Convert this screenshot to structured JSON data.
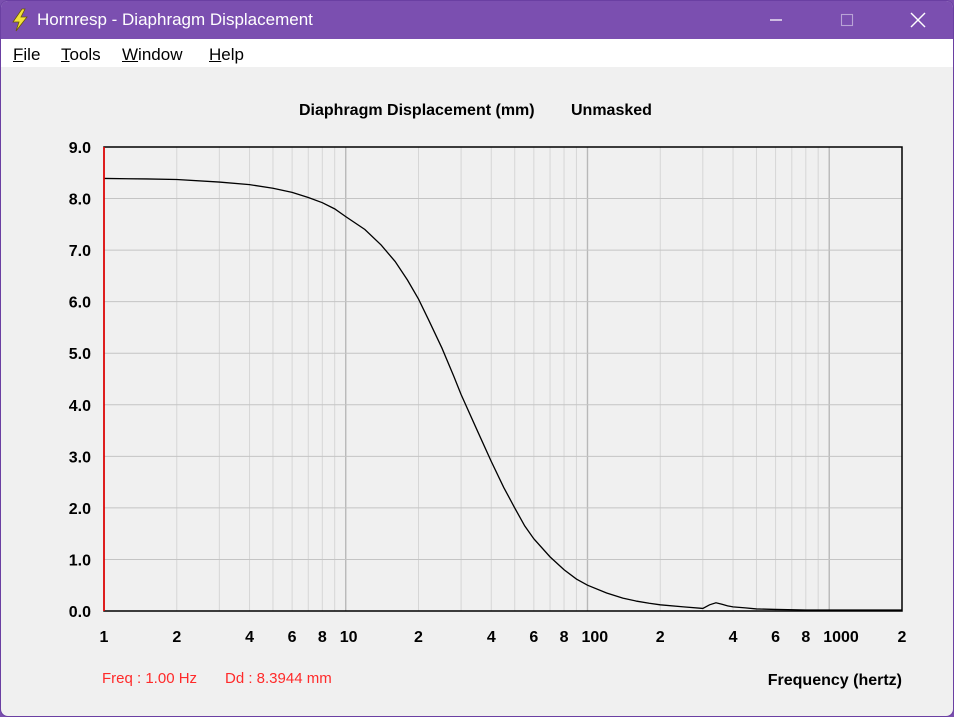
{
  "window": {
    "title": "Hornresp - Diaphragm Displacement",
    "accent_color": "#7b4fb0",
    "icons": [
      "lightning-icon",
      "minimize-icon",
      "maximize-icon",
      "close-icon"
    ]
  },
  "menu": {
    "file": {
      "mnemonic": "F",
      "rest": "ile"
    },
    "tools": {
      "mnemonic": "T",
      "rest": "ools"
    },
    "window": {
      "mnemonic": "W",
      "rest": "indow"
    },
    "help": {
      "mnemonic": "H",
      "rest": "elp"
    }
  },
  "status": {
    "freq": "Freq : 1.00 Hz",
    "dd": "Dd : 8.3944 mm"
  },
  "chart_data": {
    "type": "line",
    "title": "Diaphragm Displacement (mm)",
    "subtitle": "Unmasked",
    "xlabel": "Frequency (hertz)",
    "ylabel": "",
    "x_scale": "log",
    "xlim": [
      1,
      2000
    ],
    "ylim": [
      0,
      9
    ],
    "grid": true,
    "y_ticks": [
      "0.0",
      "1.0",
      "2.0",
      "3.0",
      "4.0",
      "5.0",
      "6.0",
      "7.0",
      "8.0",
      "9.0"
    ],
    "x_ticks": [
      {
        "value": 1,
        "label": "1"
      },
      {
        "value": 2,
        "label": "2"
      },
      {
        "value": 4,
        "label": "4"
      },
      {
        "value": 6,
        "label": "6"
      },
      {
        "value": 8,
        "label": "8"
      },
      {
        "value": 10,
        "label": "10"
      },
      {
        "value": 20,
        "label": "2"
      },
      {
        "value": 40,
        "label": "4"
      },
      {
        "value": 60,
        "label": "6"
      },
      {
        "value": 80,
        "label": "8"
      },
      {
        "value": 100,
        "label": "100"
      },
      {
        "value": 200,
        "label": "2"
      },
      {
        "value": 400,
        "label": "4"
      },
      {
        "value": 600,
        "label": "6"
      },
      {
        "value": 800,
        "label": "8"
      },
      {
        "value": 1000,
        "label": "1000"
      },
      {
        "value": 2000,
        "label": "2"
      }
    ],
    "cursor_x": 1,
    "line_color": "#000000",
    "cursor_color": "#ff0000",
    "series": [
      {
        "x": [
          1,
          1.5,
          2,
          3,
          4,
          5,
          6,
          7,
          8,
          9,
          10,
          12,
          14,
          16,
          18,
          20,
          22,
          25,
          28,
          30,
          35,
          40,
          45,
          50,
          55,
          60,
          70,
          80,
          90,
          100,
          120,
          140,
          160,
          180,
          200,
          250,
          300,
          320,
          340,
          360,
          380,
          400,
          450,
          500,
          600,
          800,
          1000,
          1500,
          2000
        ],
        "y": [
          8.39,
          8.38,
          8.37,
          8.32,
          8.27,
          8.2,
          8.12,
          8.02,
          7.92,
          7.8,
          7.65,
          7.4,
          7.1,
          6.78,
          6.42,
          6.05,
          5.65,
          5.1,
          4.55,
          4.2,
          3.5,
          2.9,
          2.4,
          2.0,
          1.65,
          1.4,
          1.05,
          0.8,
          0.62,
          0.5,
          0.35,
          0.25,
          0.19,
          0.15,
          0.12,
          0.08,
          0.05,
          0.12,
          0.16,
          0.13,
          0.1,
          0.08,
          0.06,
          0.04,
          0.03,
          0.02,
          0.02,
          0.02,
          0.02
        ]
      }
    ]
  }
}
